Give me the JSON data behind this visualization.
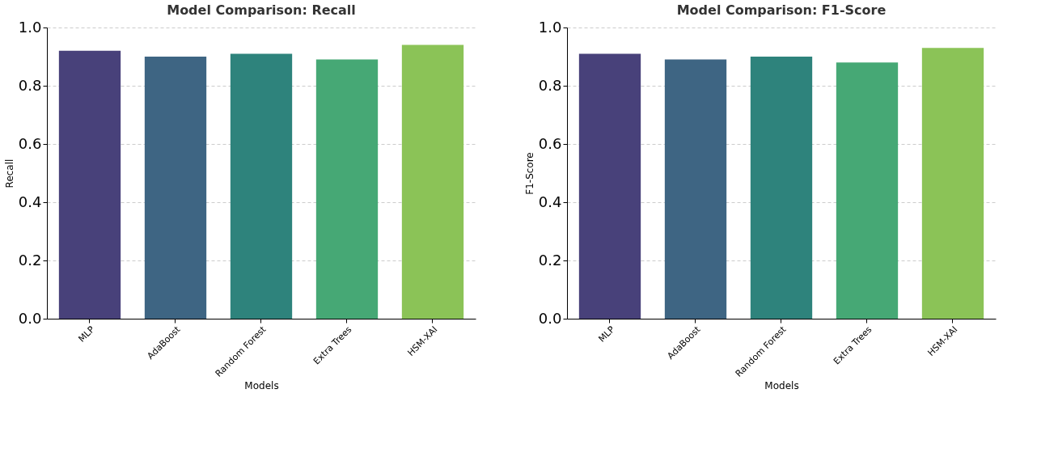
{
  "chart_data": [
    {
      "type": "bar",
      "title": "Model Comparison: Recall",
      "xlabel": "Models",
      "ylabel": "Recall",
      "categories": [
        "MLP",
        "AdaBoost",
        "Random Forest",
        "Extra Trees",
        "HSM-XAI"
      ],
      "values": [
        0.92,
        0.9,
        0.91,
        0.89,
        0.94
      ],
      "colors": [
        "#48417a",
        "#3e6583",
        "#2e837c",
        "#46a875",
        "#8bc357"
      ],
      "ylim": [
        0,
        1
      ],
      "yticks": [
        {
          "value": 0,
          "label": "0.0"
        },
        {
          "value": 0.2,
          "label": "0.2"
        },
        {
          "value": 0.4,
          "label": "0.4"
        },
        {
          "value": 0.6,
          "label": "0.6"
        },
        {
          "value": 0.8,
          "label": "0.8"
        },
        {
          "value": 1,
          "label": "1.0"
        }
      ],
      "grid": "y",
      "line_style": "dashed"
    },
    {
      "type": "bar",
      "title": "Model Comparison: F1-Score",
      "xlabel": "Models",
      "ylabel": "F1-Score",
      "categories": [
        "MLP",
        "AdaBoost",
        "Random Forest",
        "Extra Trees",
        "HSM-XAI"
      ],
      "values": [
        0.91,
        0.89,
        0.9,
        0.88,
        0.93
      ],
      "colors": [
        "#48417a",
        "#3e6583",
        "#2e837c",
        "#46a875",
        "#8bc357"
      ],
      "ylim": [
        0,
        1
      ],
      "yticks": [
        {
          "value": 0,
          "label": "0.0"
        },
        {
          "value": 0.2,
          "label": "0.2"
        },
        {
          "value": 0.4,
          "label": "0.4"
        },
        {
          "value": 0.6,
          "label": "0.6"
        },
        {
          "value": 0.8,
          "label": "0.8"
        },
        {
          "value": 1,
          "label": "1.0"
        }
      ],
      "grid": "y",
      "line_style": "dashed"
    }
  ]
}
